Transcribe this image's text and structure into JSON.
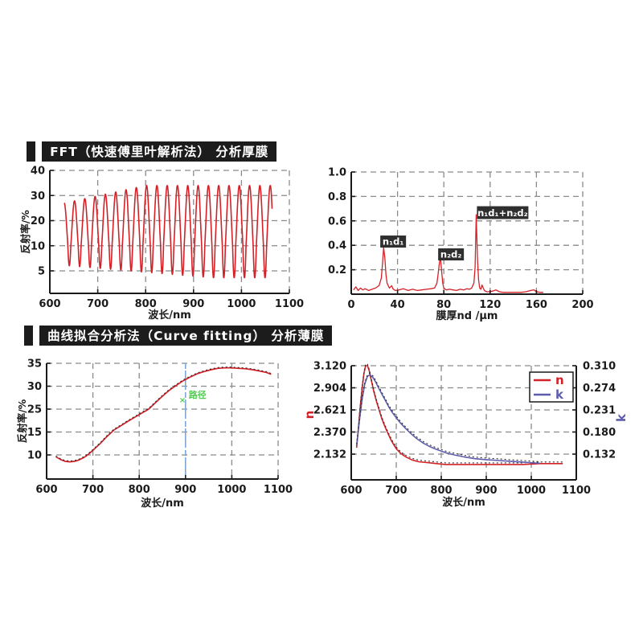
{
  "sections": [
    {
      "title": "FFT（快速傅里叶解析法） 分析厚膜"
    },
    {
      "title": "曲线拟合分析法（Curve fitting） 分析薄膜"
    }
  ],
  "colors": {
    "curve_red": "#d42127",
    "curve_blue": "#5d5dab",
    "dotted_black": "#2e2e2e",
    "marker_blue": "#7aa8e0",
    "annotation_green": "#52cc52",
    "grid_gray": "#8a8a8a",
    "axis_black": "#1a1a1a",
    "header_bg": "#1c1c1c",
    "header_text": "#ffffff",
    "peak_label_bg": "#2f2f2f"
  },
  "chart_data": [
    {
      "id": "fft-reflectance-spectrum",
      "type": "line",
      "title": "",
      "xlabel": "波长/nm",
      "ylabel": "反射率/%",
      "xlim": [
        600,
        1100
      ],
      "x_ticks": [
        600,
        700,
        800,
        900,
        1000,
        1100
      ],
      "y_tick_values": [
        40,
        30,
        20,
        10,
        5
      ],
      "y_tick_labels": [
        "40",
        "30",
        "20",
        "10",
        "5"
      ],
      "grid": true,
      "series": [
        {
          "name": "measured-reflectance-oscillation",
          "color": "#d42127",
          "width": 1.6,
          "oscillation": {
            "x_start": 630,
            "x_end": 1064,
            "period_nm": 21.5,
            "upper": {
              "from": 27,
              "to": 34,
              "x0": 630,
              "x1": 800
            },
            "lower": {
              "from": 6,
              "to": 3.6,
              "x0": 640,
              "x1": 940
            }
          }
        }
      ]
    },
    {
      "id": "fft-thickness-spectrum",
      "type": "line",
      "title": "",
      "xlabel": "膜厚nd /μm",
      "ylabel": "",
      "xlim": [
        0,
        200
      ],
      "x_ticks": [
        0,
        40,
        80,
        120,
        160,
        200
      ],
      "y_tick_values": [
        1.0,
        0.8,
        0.6,
        0.4,
        0.2
      ],
      "y_tick_labels": [
        "1.0",
        "0.8",
        "0.6",
        "0.4",
        "0.2"
      ],
      "grid": true,
      "peaks": [
        {
          "nd_um": 28,
          "amplitude": 0.38,
          "label": "n₁d₁"
        },
        {
          "nd_um": 77,
          "amplitude": 0.31,
          "label": "n₂d₂"
        },
        {
          "nd_um": 108,
          "amplitude": 0.65,
          "label": "n₁d₁+n₂d₂"
        }
      ],
      "annotations": [
        {
          "text": "n₁d₁",
          "ax": 26.5,
          "ay": 0.48,
          "w": 32,
          "h": 15
        },
        {
          "text": "n₂d₂",
          "ax": 76.5,
          "ay": 0.375,
          "w": 32,
          "h": 15
        },
        {
          "text": "n₁d₁+n₂d₂",
          "ax": 110,
          "ay": 0.72,
          "w": 64,
          "h": 16
        }
      ],
      "series": [
        {
          "name": "fft-amplitude",
          "color": "#d42127",
          "width": 1.3,
          "x": [
            2,
            4,
            6,
            8,
            10,
            12,
            15,
            18,
            21,
            24,
            26,
            27,
            28,
            29,
            30,
            31,
            33,
            35,
            36,
            38,
            41,
            45,
            49,
            53,
            57,
            61,
            65,
            69,
            72,
            74,
            75,
            76,
            77,
            78,
            79,
            80,
            82,
            85,
            88,
            91,
            94,
            97,
            100,
            102,
            104,
            106,
            107,
            108,
            109,
            110,
            111,
            112,
            113,
            115,
            117,
            119,
            122,
            125,
            128,
            131,
            135,
            139,
            143,
            147,
            151,
            155,
            158,
            160,
            163,
            166
          ],
          "y": [
            0.035,
            0.06,
            0.03,
            0.05,
            0.035,
            0.045,
            0.03,
            0.04,
            0.05,
            0.07,
            0.13,
            0.25,
            0.38,
            0.3,
            0.16,
            0.09,
            0.05,
            0.07,
            0.045,
            0.03,
            0.035,
            0.045,
            0.03,
            0.04,
            0.03,
            0.035,
            0.04,
            0.045,
            0.05,
            0.09,
            0.16,
            0.24,
            0.31,
            0.2,
            0.09,
            0.05,
            0.035,
            0.04,
            0.035,
            0.03,
            0.04,
            0.035,
            0.045,
            0.04,
            0.05,
            0.09,
            0.22,
            0.65,
            0.3,
            0.12,
            0.05,
            0.04,
            0.075,
            0.03,
            0.02,
            0.02,
            0.025,
            0.035,
            0.02,
            0.015,
            0.015,
            0.015,
            0.015,
            0.015,
            0.02,
            0.03,
            0.035,
            0.02,
            0.015,
            0.015
          ]
        }
      ]
    },
    {
      "id": "curve-fit-reflectance",
      "type": "line",
      "title": "",
      "xlabel": "波长/nm",
      "ylabel": "反射率/%",
      "xlim": [
        600,
        1100
      ],
      "x_ticks": [
        600,
        700,
        800,
        900,
        1000,
        1100
      ],
      "y_tick_values": [
        35,
        30,
        25,
        15,
        10
      ],
      "y_tick_labels": [
        "35",
        "30",
        "25",
        "15",
        "10"
      ],
      "grid": true,
      "marker_line": {
        "x": 900,
        "color": "#7aa8e0",
        "label": "路径",
        "label_color": "#52cc52",
        "label_y": 27.5,
        "glyph": "×"
      },
      "series": [
        {
          "name": "fitted-curve",
          "color": "#d42127",
          "width": 1.7,
          "overlay": {
            "color": "#2e2e2e",
            "dash": "2 3",
            "width": 1.1,
            "dy": -1
          },
          "x": [
            620,
            630,
            640,
            650,
            660,
            670,
            680,
            690,
            700,
            715,
            730,
            745,
            760,
            775,
            790,
            805,
            820,
            835,
            850,
            865,
            880,
            895,
            910,
            925,
            940,
            955,
            970,
            985,
            1000,
            1015,
            1030,
            1045,
            1060,
            1075,
            1085
          ],
          "y": [
            9.6,
            9.0,
            8.6,
            8.5,
            8.6,
            8.9,
            9.4,
            10.1,
            11.0,
            12.4,
            14.0,
            15.8,
            17.7,
            19.6,
            21.4,
            23.2,
            24.9,
            26.4,
            27.8,
            29.1,
            30.2,
            31.2,
            32.0,
            32.7,
            33.2,
            33.6,
            33.9,
            34.0,
            34.0,
            33.9,
            33.8,
            33.6,
            33.3,
            33.0,
            32.6
          ]
        }
      ]
    },
    {
      "id": "nk-dispersion",
      "type": "line",
      "title": "",
      "xlabel": "波长/nm",
      "ylabel_left": "n",
      "ylabel_left_color": "#d42127",
      "ylabel_right": "k",
      "ylabel_right_color": "#5d5dab",
      "xlim": [
        600,
        1100
      ],
      "x_ticks": [
        600,
        700,
        800,
        900,
        1000,
        1100
      ],
      "y_tick_values": [
        3.12,
        2.904,
        2.621,
        2.37,
        2.132
      ],
      "y_tick_labels": [
        "3.120",
        "2.904",
        "2.621",
        "2.370",
        "2.132"
      ],
      "right_tick_values": [
        0.31,
        0.274,
        0.231,
        0.18,
        0.132
      ],
      "right_tick_labels": [
        "0.310",
        "0.274",
        "0.231",
        "0.180",
        "0.132"
      ],
      "grid": true,
      "legend": [
        {
          "label": "n",
          "color": "#d42127"
        },
        {
          "label": "k",
          "color": "#5d5dab"
        }
      ],
      "series": [
        {
          "name": "n-refractive-index",
          "color": "#d42127",
          "width": 1.6,
          "overlay": {
            "color": "#2e2e2e",
            "dash": "2 3",
            "width": 1.1,
            "dy": -2
          },
          "x": [
            612,
            616,
            620,
            624,
            628,
            632,
            636,
            640,
            645,
            650,
            656,
            662,
            668,
            675,
            682,
            690,
            700,
            710,
            722,
            735,
            750,
            770,
            790,
            810,
            840,
            870,
            900,
            940,
            980,
            1020,
            1070
          ],
          "y": [
            2.2,
            2.42,
            2.66,
            2.88,
            3.04,
            3.12,
            3.12,
            3.07,
            2.97,
            2.86,
            2.73,
            2.62,
            2.52,
            2.43,
            2.35,
            2.27,
            2.19,
            2.14,
            2.1,
            2.07,
            2.05,
            2.04,
            2.03,
            2.02,
            2.02,
            2.02,
            2.02,
            2.02,
            2.02,
            2.03,
            2.03
          ]
        },
        {
          "name": "k-extinction-coefficient",
          "color": "#5d5dab",
          "width": 1.6,
          "axis": "right",
          "overlay": {
            "color": "#2e2e2e",
            "dash": "2 3",
            "width": 1.1,
            "dy": -2
          },
          "x": [
            612,
            618,
            624,
            630,
            636,
            642,
            648,
            654,
            660,
            668,
            676,
            684,
            692,
            700,
            710,
            720,
            732,
            745,
            760,
            775,
            790,
            810,
            830,
            850,
            875,
            900,
            930,
            960,
            990,
            1020
          ],
          "y": [
            0.15,
            0.205,
            0.25,
            0.28,
            0.293,
            0.295,
            0.291,
            0.284,
            0.275,
            0.262,
            0.249,
            0.236,
            0.224,
            0.213,
            0.2,
            0.189,
            0.177,
            0.166,
            0.156,
            0.148,
            0.142,
            0.135,
            0.13,
            0.126,
            0.122,
            0.12,
            0.118,
            0.116,
            0.114,
            0.112
          ]
        }
      ]
    }
  ]
}
